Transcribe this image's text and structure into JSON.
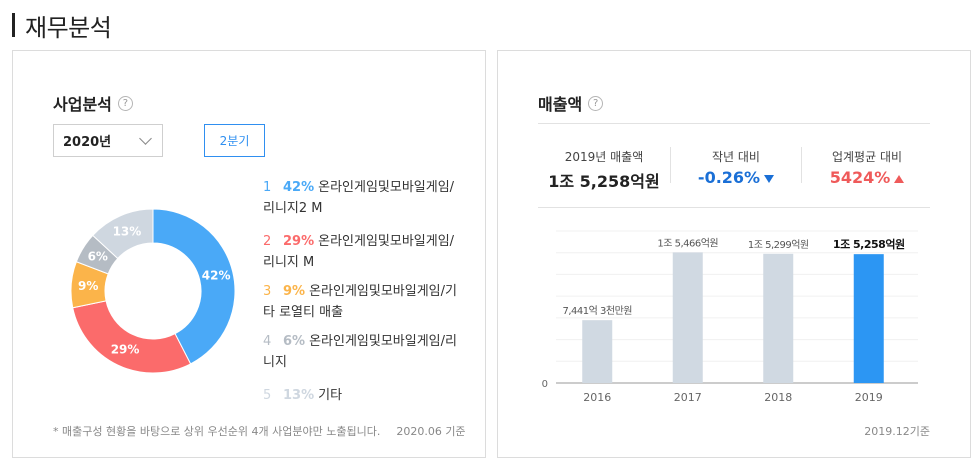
{
  "page": {
    "title": "재무분석"
  },
  "business": {
    "title": "사업분석",
    "help": "?",
    "year_select": "2020년",
    "quarter_button": "2분기",
    "legend": [
      {
        "rank": "1",
        "pct": "42%",
        "name": "온라인게임및모바일게임/",
        "name2": "리니지2 M",
        "color": "#4aa9f7"
      },
      {
        "rank": "2",
        "pct": "29%",
        "name": "온라인게임및모바일게임/",
        "name2": "리니지 M",
        "color": "#fb6b6b"
      },
      {
        "rank": "3",
        "pct": "9%",
        "name": "온라인게임및모바일게임/기",
        "name2": "타 로열티 매출",
        "color": "#fbb44a"
      },
      {
        "rank": "4",
        "pct": "6%",
        "name": "온라인게임및모바일게임/리",
        "name2": "니지",
        "color": "#b5bcc4"
      },
      {
        "rank": "5",
        "pct": "13%",
        "name": "기타",
        "name2": "",
        "color": "#cfd7e0"
      }
    ],
    "footnote": "* 매출구성 현황을 바탕으로 상위 우선순위 4개 사업분야만 노출됩니다.",
    "footnote_date": "2020.06 기준"
  },
  "chart_data": [
    {
      "type": "pie",
      "categories": [
        "온라인게임및모바일게임/리니지2 M",
        "온라인게임및모바일게임/리니지 M",
        "온라인게임및모바일게임/기타 로열티 매출",
        "온라인게임및모바일게임/리니지",
        "기타"
      ],
      "values": [
        42,
        29,
        9,
        6,
        13
      ],
      "labels": [
        "42%",
        "29%",
        "9%",
        "6%",
        "13%"
      ],
      "colors": [
        "#4aa9f7",
        "#fb6b6b",
        "#fbb44a",
        "#b5bcc4",
        "#cfd7e0"
      ],
      "donut": true
    },
    {
      "type": "bar",
      "categories": [
        "2016",
        "2017",
        "2018",
        "2019"
      ],
      "values": [
        7441.3,
        15466,
        15299,
        15258
      ],
      "labels": [
        "7,441억 3천만원",
        "1조 5,466억원",
        "1조 5,299억원",
        "1조 5,258억원"
      ],
      "ytick": "0",
      "highlight_index": 3,
      "colors": {
        "normal": "#d0d9e2",
        "highlight": "#2c96f3"
      },
      "ylim": [
        0,
        18000
      ]
    }
  ],
  "sales": {
    "title": "매출액",
    "help": "?",
    "stats": {
      "prev_label": "2019년 매출액",
      "prev_value": "1조 5,258억원",
      "yoy_label": "작년 대비",
      "yoy_value": "-0.26%",
      "industry_label": "업계평균 대비",
      "industry_value": "5424%"
    },
    "basis": "2019.12기준"
  }
}
